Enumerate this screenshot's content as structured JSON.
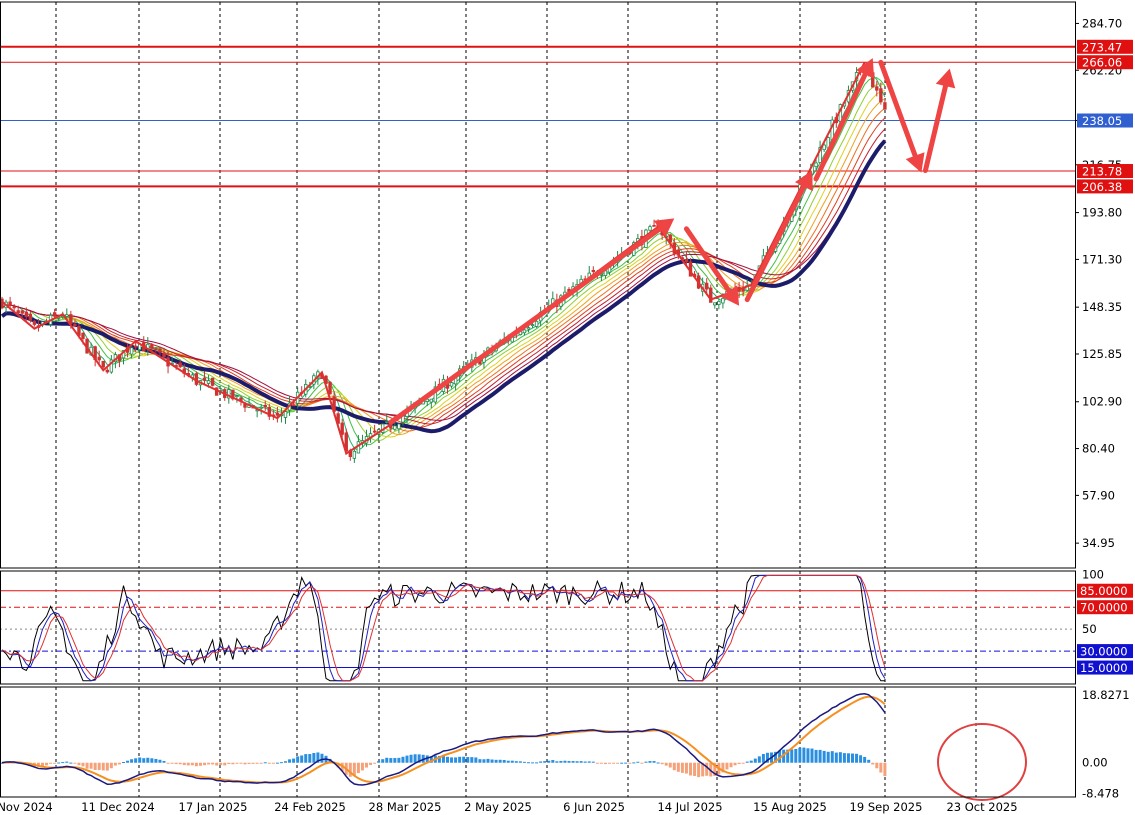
{
  "chart_data": [
    {
      "panel": "price",
      "type": "candlestick",
      "y_ticks": [
        "284.70",
        "262.20",
        "238.05",
        "216.75",
        "193.80",
        "171.30",
        "148.35",
        "125.85",
        "102.90",
        "80.40",
        "57.90",
        "34.95"
      ],
      "level_labels": [
        {
          "value": 273.47,
          "label": "273.47",
          "color": "#e01010"
        },
        {
          "value": 266.06,
          "label": "266.06",
          "color": "#e01010"
        },
        {
          "value": 238.05,
          "label": "238.05",
          "color": "#3060d0"
        },
        {
          "value": 213.78,
          "label": "213.78",
          "color": "#e01010"
        },
        {
          "value": 206.38,
          "label": "206.38",
          "color": "#e01010"
        }
      ],
      "ylim": [
        23.0,
        295.0
      ],
      "x_tick_labels": [
        "Nov 2024",
        "11 Dec 2024",
        "17 Jan 2025",
        "24 Feb 2025",
        "28 Mar 2025",
        "2 May 2025",
        "6 Jun 2025",
        "14 Jul 2025",
        "15 Aug 2025",
        "19 Sep 2025",
        "23 Oct 2025"
      ],
      "trend_path": [
        {
          "bar": 0,
          "price": 151
        },
        {
          "bar": 8,
          "price": 138
        },
        {
          "bar": 15,
          "price": 145
        },
        {
          "bar": 25,
          "price": 118
        },
        {
          "bar": 33,
          "price": 132
        },
        {
          "bar": 48,
          "price": 113
        },
        {
          "bar": 68,
          "price": 95
        },
        {
          "bar": 79,
          "price": 117
        },
        {
          "bar": 85,
          "price": 78
        },
        {
          "bar": 96,
          "price": 92
        },
        {
          "bar": 162,
          "price": 187
        },
        {
          "bar": 175,
          "price": 152
        },
        {
          "bar": 185,
          "price": 159
        },
        {
          "bar": 213,
          "price": 266
        }
      ],
      "arrows": [
        {
          "from": [
            96,
            93
          ],
          "to": [
            166,
            191
          ]
        },
        {
          "from": [
            169,
            186
          ],
          "to": [
            182,
            149
          ]
        },
        {
          "from": [
            184,
            152
          ],
          "to": [
            200,
            214
          ]
        },
        {
          "from": [
            201,
            210
          ],
          "to": [
            215,
            268
          ]
        },
        {
          "from": [
            217,
            266
          ],
          "to": [
            227,
            213
          ]
        },
        {
          "from": [
            228,
            214
          ],
          "to": [
            234,
            263
          ]
        }
      ],
      "colors": {
        "up": "#1f8a4c",
        "down": "#cc3333",
        "trend": "#e03030",
        "slow_ma": "#1c1c6a"
      }
    },
    {
      "panel": "oscillator",
      "type": "line",
      "y_ticks": [
        "100",
        "50"
      ],
      "levels": [
        {
          "value": 85,
          "label": "85.0000",
          "color": "#e01010"
        },
        {
          "value": 70,
          "label": "70.0000",
          "color": "#e01010"
        },
        {
          "value": 30,
          "label": "30.0000",
          "color": "#1010d0"
        },
        {
          "value": 15,
          "label": "15.0000",
          "color": "#1010d0"
        }
      ],
      "ylim": [
        0,
        103
      ],
      "series_colors": [
        "#000000",
        "#2020c0",
        "#e03030"
      ]
    },
    {
      "panel": "macd",
      "type": "bar+line",
      "y_ticks": [
        "18.8271",
        "0.00",
        "-8.478"
      ],
      "ylim": [
        -9.5,
        21.0
      ],
      "colors": {
        "pos_hist": "#2a8fe0",
        "neg_hist": "#f5a27a",
        "main": "#1a1a80",
        "signal": "#f59020",
        "highlight": "#e04040"
      }
    }
  ]
}
